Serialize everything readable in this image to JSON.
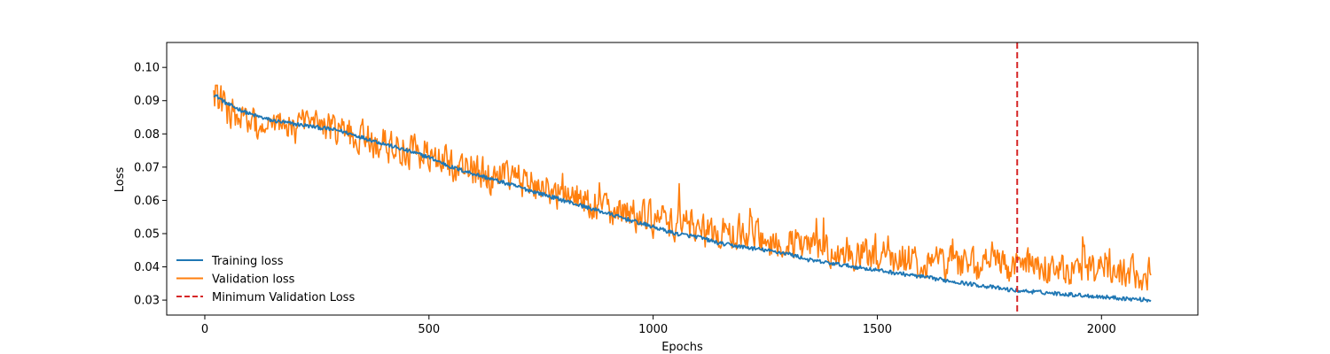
{
  "chart_data": {
    "type": "line",
    "title": "",
    "xlabel": "Epochs",
    "ylabel": "Loss",
    "xlim": [
      -85,
      2215
    ],
    "ylim": [
      0.0255,
      0.1075
    ],
    "x_ticks": [
      {
        "value": 0,
        "label": "0"
      },
      {
        "value": 500,
        "label": "500"
      },
      {
        "value": 1000,
        "label": "1000"
      },
      {
        "value": 1500,
        "label": "1500"
      },
      {
        "value": 2000,
        "label": "2000"
      }
    ],
    "y_ticks": [
      {
        "value": 0.03,
        "label": "0.03"
      },
      {
        "value": 0.04,
        "label": "0.04"
      },
      {
        "value": 0.05,
        "label": "0.05"
      },
      {
        "value": 0.06,
        "label": "0.06"
      },
      {
        "value": 0.07,
        "label": "0.07"
      },
      {
        "value": 0.08,
        "label": "0.08"
      },
      {
        "value": 0.09,
        "label": "0.09"
      },
      {
        "value": 0.1,
        "label": "0.10"
      }
    ],
    "legend_position": "lower-left",
    "grid": false,
    "series": [
      {
        "name": "Training loss",
        "color": "#1f77b4",
        "x": [
          20,
          50,
          100,
          150,
          200,
          250,
          300,
          350,
          400,
          450,
          500,
          550,
          600,
          650,
          700,
          750,
          800,
          850,
          900,
          950,
          1000,
          1050,
          1100,
          1150,
          1200,
          1250,
          1300,
          1350,
          1400,
          1450,
          1500,
          1550,
          1600,
          1650,
          1700,
          1750,
          1800,
          1850,
          1900,
          1950,
          2000,
          2050,
          2110
        ],
        "y": [
          0.092,
          0.089,
          0.086,
          0.084,
          0.083,
          0.082,
          0.081,
          0.079,
          0.077,
          0.075,
          0.073,
          0.07,
          0.068,
          0.066,
          0.064,
          0.062,
          0.06,
          0.058,
          0.056,
          0.054,
          0.052,
          0.05,
          0.049,
          0.047,
          0.046,
          0.045,
          0.044,
          0.042,
          0.041,
          0.04,
          0.039,
          0.038,
          0.037,
          0.036,
          0.035,
          0.034,
          0.033,
          0.0325,
          0.032,
          0.0315,
          0.031,
          0.0305,
          0.03
        ],
        "noise": 0.0006
      },
      {
        "name": "Validation loss",
        "color": "#ff7f0e",
        "x": [
          20,
          50,
          100,
          150,
          200,
          250,
          300,
          350,
          400,
          450,
          500,
          550,
          600,
          650,
          700,
          750,
          800,
          850,
          900,
          950,
          1000,
          1050,
          1100,
          1150,
          1200,
          1250,
          1300,
          1350,
          1400,
          1450,
          1500,
          1550,
          1600,
          1650,
          1700,
          1750,
          1800,
          1850,
          1900,
          1950,
          2000,
          2050,
          2110
        ],
        "y": [
          0.093,
          0.087,
          0.083,
          0.081,
          0.082,
          0.082,
          0.081,
          0.079,
          0.077,
          0.075,
          0.073,
          0.071,
          0.069,
          0.067,
          0.066,
          0.064,
          0.062,
          0.06,
          0.058,
          0.056,
          0.054,
          0.053,
          0.051,
          0.05,
          0.049,
          0.048,
          0.047,
          0.046,
          0.045,
          0.044,
          0.043,
          0.0425,
          0.042,
          0.0415,
          0.041,
          0.0405,
          0.04,
          0.04,
          0.0395,
          0.039,
          0.039,
          0.0385,
          0.038
        ],
        "noise": 0.0045
      }
    ],
    "vline": {
      "name": "Minimum Validation Loss",
      "x": 1812,
      "color": "#d62728",
      "style": "dashed"
    }
  }
}
